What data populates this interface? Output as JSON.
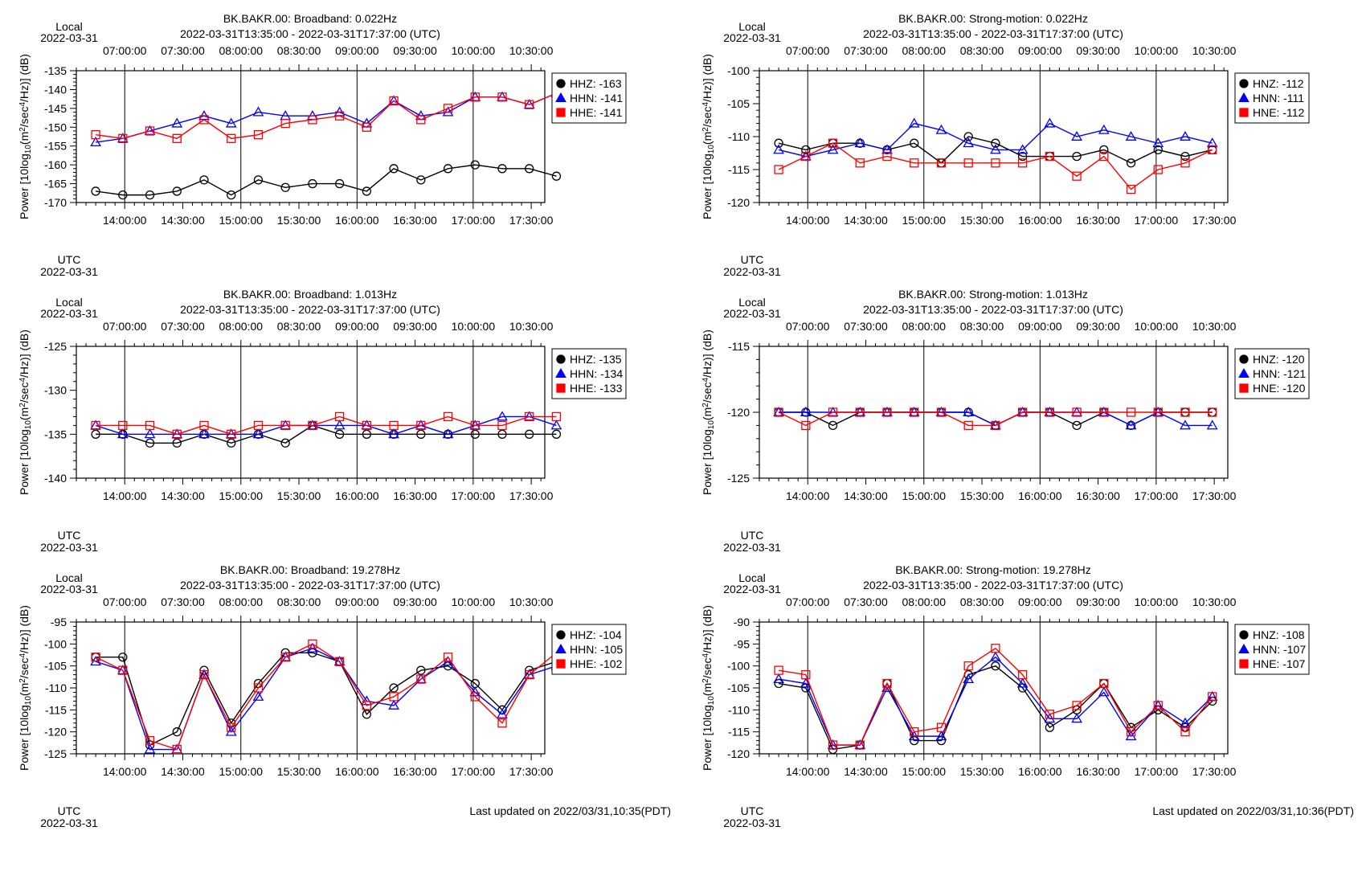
{
  "panels": [
    {
      "title_line1": "BK.BAKR.00: Broadband: 0.022Hz",
      "title_line2": "2022-03-31T13:35:00 - 2022-03-31T17:37:00 (UTC)",
      "local_label": "Local",
      "local_date": "2022-03-31",
      "utc_label": "UTC",
      "utc_date": "2022-03-31",
      "ylabel_prefix": "Power [10log",
      "ylabel_sub": "10",
      "ylabel_mid": "(m",
      "ylabel_sup1": "2",
      "ylabel_mid2": "/sec",
      "ylabel_sup2": "4",
      "ylabel_suffix": "/Hz)] (dB)",
      "ylim": [
        -170,
        -135
      ],
      "yticks": [
        "-135",
        "-140",
        "-145",
        "-150",
        "-155",
        "-160",
        "-165",
        "-170"
      ],
      "ytick_values": [
        -135,
        -140,
        -145,
        -150,
        -155,
        -160,
        -165,
        -170
      ],
      "legend": [
        {
          "label": "HHZ: -163",
          "color": "#000000",
          "marker": "circle"
        },
        {
          "label": "HHN: -141",
          "color": "#0000ff",
          "marker": "triangle"
        },
        {
          "label": "HHE: -141",
          "color": "#ff0000",
          "marker": "square"
        }
      ],
      "footer": ""
    },
    {
      "title_line1": "BK.BAKR.00: Strong-motion: 0.022Hz",
      "title_line2": "2022-03-31T13:35:00 - 2022-03-31T17:37:00 (UTC)",
      "local_label": "Local",
      "local_date": "2022-03-31",
      "utc_label": "UTC",
      "utc_date": "2022-03-31",
      "ylabel_prefix": "Power [10log",
      "ylabel_sub": "10",
      "ylabel_mid": "(m",
      "ylabel_sup1": "2",
      "ylabel_mid2": "/sec",
      "ylabel_sup2": "4",
      "ylabel_suffix": "/Hz)] (dB)",
      "ylim": [
        -120,
        -100
      ],
      "yticks": [
        "-100",
        "-105",
        "-110",
        "-115",
        "-120"
      ],
      "ytick_values": [
        -100,
        -105,
        -110,
        -115,
        -120
      ],
      "legend": [
        {
          "label": "HNZ: -112",
          "color": "#000000",
          "marker": "circle"
        },
        {
          "label": "HNN: -111",
          "color": "#0000ff",
          "marker": "triangle"
        },
        {
          "label": "HNE: -112",
          "color": "#ff0000",
          "marker": "square"
        }
      ],
      "footer": ""
    },
    {
      "title_line1": "BK.BAKR.00: Broadband: 1.013Hz",
      "title_line2": "2022-03-31T13:35:00 - 2022-03-31T17:37:00 (UTC)",
      "local_label": "Local",
      "local_date": "2022-03-31",
      "utc_label": "UTC",
      "utc_date": "2022-03-31",
      "ylabel_prefix": "Power [10log",
      "ylabel_sub": "10",
      "ylabel_mid": "(m",
      "ylabel_sup1": "2",
      "ylabel_mid2": "/sec",
      "ylabel_sup2": "4",
      "ylabel_suffix": "/Hz)] (dB)",
      "ylim": [
        -140,
        -125
      ],
      "yticks": [
        "-125",
        "-130",
        "-135",
        "-140"
      ],
      "ytick_values": [
        -125,
        -130,
        -135,
        -140
      ],
      "legend": [
        {
          "label": "HHZ: -135",
          "color": "#000000",
          "marker": "circle"
        },
        {
          "label": "HHN: -134",
          "color": "#0000ff",
          "marker": "triangle"
        },
        {
          "label": "HHE: -133",
          "color": "#ff0000",
          "marker": "square"
        }
      ],
      "footer": ""
    },
    {
      "title_line1": "BK.BAKR.00: Strong-motion: 1.013Hz",
      "title_line2": "2022-03-31T13:35:00 - 2022-03-31T17:37:00 (UTC)",
      "local_label": "Local",
      "local_date": "2022-03-31",
      "utc_label": "UTC",
      "utc_date": "2022-03-31",
      "ylabel_prefix": "Power [10log",
      "ylabel_sub": "10",
      "ylabel_mid": "(m",
      "ylabel_sup1": "2",
      "ylabel_mid2": "/sec",
      "ylabel_sup2": "4",
      "ylabel_suffix": "/Hz)] (dB)",
      "ylim": [
        -125,
        -115
      ],
      "yticks": [
        "-115",
        "-120",
        "-125"
      ],
      "ytick_values": [
        -115,
        -120,
        -125
      ],
      "legend": [
        {
          "label": "HNZ: -120",
          "color": "#000000",
          "marker": "circle"
        },
        {
          "label": "HNN: -121",
          "color": "#0000ff",
          "marker": "triangle"
        },
        {
          "label": "HNE: -120",
          "color": "#ff0000",
          "marker": "square"
        }
      ],
      "footer": ""
    },
    {
      "title_line1": "BK.BAKR.00: Broadband: 19.278Hz",
      "title_line2": "2022-03-31T13:35:00 - 2022-03-31T17:37:00 (UTC)",
      "local_label": "Local",
      "local_date": "2022-03-31",
      "utc_label": "UTC",
      "utc_date": "2022-03-31",
      "ylabel_prefix": "Power [10log",
      "ylabel_sub": "10",
      "ylabel_mid": "(m",
      "ylabel_sup1": "2",
      "ylabel_mid2": "/sec",
      "ylabel_sup2": "4",
      "ylabel_suffix": "/Hz)] (dB)",
      "ylim": [
        -125,
        -95
      ],
      "yticks": [
        "-95",
        "-100",
        "-105",
        "-110",
        "-115",
        "-120",
        "-125"
      ],
      "ytick_values": [
        -95,
        -100,
        -105,
        -110,
        -115,
        -120,
        -125
      ],
      "legend": [
        {
          "label": "HHZ: -104",
          "color": "#000000",
          "marker": "circle"
        },
        {
          "label": "HHN: -105",
          "color": "#0000ff",
          "marker": "triangle"
        },
        {
          "label": "HHE: -102",
          "color": "#ff0000",
          "marker": "square"
        }
      ],
      "footer": "Last updated on 2022/03/31,10:35(PDT)"
    },
    {
      "title_line1": "BK.BAKR.00: Strong-motion: 19.278Hz",
      "title_line2": "2022-03-31T13:35:00 - 2022-03-31T17:37:00 (UTC)",
      "local_label": "Local",
      "local_date": "2022-03-31",
      "utc_label": "UTC",
      "utc_date": "2022-03-31",
      "ylabel_prefix": "Power [10log",
      "ylabel_sub": "10",
      "ylabel_mid": "(m",
      "ylabel_sup1": "2",
      "ylabel_mid2": "/sec",
      "ylabel_sup2": "4",
      "ylabel_suffix": "/Hz)] (dB)",
      "ylim": [
        -120,
        -90
      ],
      "yticks": [
        "-90",
        "-95",
        "-100",
        "-105",
        "-110",
        "-115",
        "-120"
      ],
      "ytick_values": [
        -90,
        -95,
        -100,
        -105,
        -110,
        -115,
        -120
      ],
      "legend": [
        {
          "label": "HNZ: -108",
          "color": "#000000",
          "marker": "circle"
        },
        {
          "label": "HNN: -107",
          "color": "#0000ff",
          "marker": "triangle"
        },
        {
          "label": "HNE: -107",
          "color": "#ff0000",
          "marker": "square"
        }
      ],
      "footer": "Last updated on 2022/03/31,10:36(PDT)"
    }
  ],
  "time_axis": {
    "local_ticks": [
      "07:00:00",
      "07:30:00",
      "08:00:00",
      "08:30:00",
      "09:00:00",
      "09:30:00",
      "10:00:00",
      "10:30:00"
    ],
    "utc_ticks": [
      "14:00:00",
      "14:30:00",
      "15:00:00",
      "15:30:00",
      "16:00:00",
      "16:30:00",
      "17:00:00",
      "17:30:00"
    ],
    "range_utc": [
      "2022-03-31T13:35:00",
      "2022-03-31T17:37:00"
    ]
  },
  "chart_data": [
    {
      "type": "line",
      "title": "BK.BAKR.00: Broadband: 0.022Hz",
      "x": [
        "13:45",
        "13:59",
        "14:13",
        "14:27",
        "14:41",
        "14:55",
        "15:09",
        "15:23",
        "15:37",
        "15:51",
        "16:05",
        "16:19",
        "16:33",
        "16:47",
        "17:01",
        "17:15",
        "17:29",
        "17:43"
      ],
      "ylim": [
        -170,
        -135
      ],
      "series": [
        {
          "name": "HHZ",
          "color": "#000000",
          "marker": "circle",
          "values": [
            -167,
            -168,
            -168,
            -167,
            -164,
            -168,
            -164,
            -166,
            -165,
            -165,
            -167,
            -161,
            -164,
            -161,
            -160,
            -161,
            -161,
            -163
          ]
        },
        {
          "name": "HHN",
          "color": "#0000ff",
          "marker": "triangle",
          "values": [
            -154,
            -153,
            -151,
            -149,
            -147,
            -149,
            -146,
            -147,
            -147,
            -146,
            -149,
            -143,
            -147,
            -146,
            -142,
            -142,
            -144,
            -141
          ]
        },
        {
          "name": "HHE",
          "color": "#ff0000",
          "marker": "square",
          "values": [
            -152,
            -153,
            -151,
            -153,
            -148,
            -153,
            -152,
            -149,
            -148,
            -147,
            -150,
            -143,
            -148,
            -145,
            -142,
            -142,
            -144,
            -141
          ]
        }
      ]
    },
    {
      "type": "line",
      "title": "BK.BAKR.00: Strong-motion: 0.022Hz",
      "x": [
        "13:45",
        "13:59",
        "14:13",
        "14:27",
        "14:41",
        "14:55",
        "15:09",
        "15:23",
        "15:37",
        "15:51",
        "16:05",
        "16:19",
        "16:33",
        "16:47",
        "17:01",
        "17:15",
        "17:29"
      ],
      "ylim": [
        -120,
        -100
      ],
      "series": [
        {
          "name": "HNZ",
          "color": "#000000",
          "marker": "circle",
          "values": [
            -111,
            -112,
            -111,
            -111,
            -112,
            -111,
            -114,
            -110,
            -111,
            -113,
            -113,
            -113,
            -112,
            -114,
            -112,
            -113,
            -112
          ]
        },
        {
          "name": "HNN",
          "color": "#0000ff",
          "marker": "triangle",
          "values": [
            -112,
            -113,
            -112,
            -111,
            -112,
            -108,
            -109,
            -111,
            -112,
            -112,
            -108,
            -110,
            -109,
            -110,
            -111,
            -110,
            -111
          ]
        },
        {
          "name": "HNE",
          "color": "#ff0000",
          "marker": "square",
          "values": [
            -115,
            -113,
            -111,
            -114,
            -113,
            -114,
            -114,
            -114,
            -114,
            -114,
            -113,
            -116,
            -113,
            -118,
            -115,
            -114,
            -112
          ]
        }
      ]
    },
    {
      "type": "line",
      "title": "BK.BAKR.00: Broadband: 1.013Hz",
      "x": [
        "13:45",
        "13:59",
        "14:13",
        "14:27",
        "14:41",
        "14:55",
        "15:09",
        "15:23",
        "15:37",
        "15:51",
        "16:05",
        "16:19",
        "16:33",
        "16:47",
        "17:01",
        "17:15",
        "17:29",
        "17:43"
      ],
      "ylim": [
        -140,
        -125
      ],
      "series": [
        {
          "name": "HHZ",
          "color": "#000000",
          "marker": "circle",
          "values": [
            -135,
            -135,
            -136,
            -136,
            -135,
            -136,
            -135,
            -136,
            -134,
            -135,
            -135,
            -135,
            -135,
            -135,
            -135,
            -135,
            -135,
            -135
          ]
        },
        {
          "name": "HHN",
          "color": "#0000ff",
          "marker": "triangle",
          "values": [
            -134,
            -135,
            -135,
            -135,
            -135,
            -135,
            -135,
            -134,
            -134,
            -134,
            -134,
            -135,
            -134,
            -135,
            -134,
            -133,
            -133,
            -134
          ]
        },
        {
          "name": "HHE",
          "color": "#ff0000",
          "marker": "square",
          "values": [
            -134,
            -134,
            -134,
            -135,
            -134,
            -135,
            -134,
            -134,
            -134,
            -133,
            -134,
            -134,
            -134,
            -133,
            -134,
            -134,
            -133,
            -133
          ]
        }
      ]
    },
    {
      "type": "line",
      "title": "BK.BAKR.00: Strong-motion: 1.013Hz",
      "x": [
        "13:45",
        "13:59",
        "14:13",
        "14:27",
        "14:41",
        "14:55",
        "15:09",
        "15:23",
        "15:37",
        "15:51",
        "16:05",
        "16:19",
        "16:33",
        "16:47",
        "17:01",
        "17:15",
        "17:29"
      ],
      "ylim": [
        -125,
        -115
      ],
      "series": [
        {
          "name": "HNZ",
          "color": "#000000",
          "marker": "circle",
          "values": [
            -120,
            -120,
            -121,
            -120,
            -120,
            -120,
            -120,
            -120,
            -121,
            -120,
            -120,
            -121,
            -120,
            -121,
            -120,
            -120,
            -120
          ]
        },
        {
          "name": "HNN",
          "color": "#0000ff",
          "marker": "triangle",
          "values": [
            -120,
            -120,
            -120,
            -120,
            -120,
            -120,
            -120,
            -120,
            -121,
            -120,
            -120,
            -120,
            -120,
            -121,
            -120,
            -121,
            -121
          ]
        },
        {
          "name": "HNE",
          "color": "#ff0000",
          "marker": "square",
          "values": [
            -120,
            -121,
            -120,
            -120,
            -120,
            -120,
            -120,
            -121,
            -121,
            -120,
            -120,
            -120,
            -120,
            -120,
            -120,
            -120,
            -120
          ]
        }
      ]
    },
    {
      "type": "line",
      "title": "BK.BAKR.00: Broadband: 19.278Hz",
      "x": [
        "13:45",
        "13:59",
        "14:13",
        "14:27",
        "14:41",
        "14:55",
        "15:09",
        "15:23",
        "15:37",
        "15:51",
        "16:05",
        "16:19",
        "16:33",
        "16:47",
        "17:01",
        "17:15",
        "17:29",
        "17:43"
      ],
      "ylim": [
        -125,
        -95
      ],
      "series": [
        {
          "name": "HHZ",
          "color": "#000000",
          "marker": "circle",
          "values": [
            -103,
            -103,
            -123,
            -120,
            -106,
            -118,
            -109,
            -102,
            -102,
            -104,
            -116,
            -110,
            -106,
            -105,
            -109,
            -115,
            -106,
            -104
          ]
        },
        {
          "name": "HHN",
          "color": "#0000ff",
          "marker": "triangle",
          "values": [
            -104,
            -106,
            -124,
            -124,
            -107,
            -120,
            -112,
            -103,
            -101,
            -104,
            -113,
            -114,
            -108,
            -104,
            -111,
            -116,
            -107,
            -105
          ]
        },
        {
          "name": "HHE",
          "color": "#ff0000",
          "marker": "square",
          "values": [
            -103,
            -106,
            -122,
            -124,
            -107,
            -119,
            -110,
            -103,
            -100,
            -104,
            -114,
            -112,
            -108,
            -103,
            -112,
            -118,
            -107,
            -102
          ]
        }
      ]
    },
    {
      "type": "line",
      "title": "BK.BAKR.00: Strong-motion: 19.278Hz",
      "x": [
        "13:45",
        "13:59",
        "14:13",
        "14:27",
        "14:41",
        "14:55",
        "15:09",
        "15:23",
        "15:37",
        "15:51",
        "16:05",
        "16:19",
        "16:33",
        "16:47",
        "17:01",
        "17:15",
        "17:29"
      ],
      "ylim": [
        -120,
        -90
      ],
      "series": [
        {
          "name": "HNZ",
          "color": "#000000",
          "marker": "circle",
          "values": [
            -104,
            -105,
            -119,
            -118,
            -104,
            -117,
            -117,
            -102,
            -100,
            -105,
            -114,
            -110,
            -104,
            -114,
            -110,
            -114,
            -108
          ]
        },
        {
          "name": "HNN",
          "color": "#0000ff",
          "marker": "triangle",
          "values": [
            -103,
            -104,
            -118,
            -118,
            -105,
            -116,
            -116,
            -103,
            -98,
            -104,
            -112,
            -112,
            -106,
            -116,
            -109,
            -113,
            -107
          ]
        },
        {
          "name": "HNE",
          "color": "#ff0000",
          "marker": "square",
          "values": [
            -101,
            -102,
            -118,
            -118,
            -104,
            -115,
            -114,
            -100,
            -96,
            -102,
            -111,
            -109,
            -104,
            -115,
            -109,
            -115,
            -107
          ]
        }
      ]
    }
  ]
}
